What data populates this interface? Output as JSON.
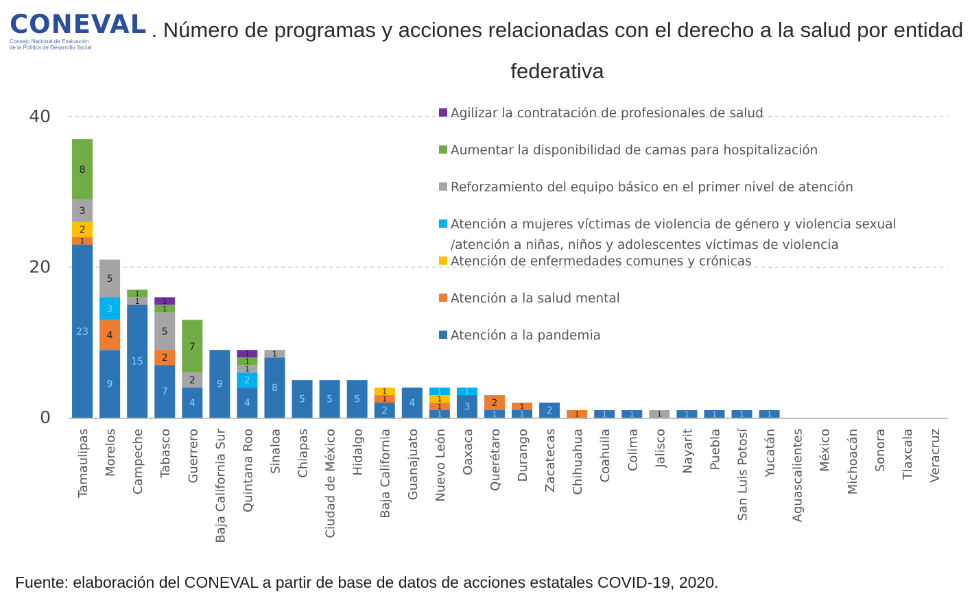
{
  "logo": {
    "brand": "CONEVAL",
    "line1": "Consejo Nacional de Evaluación",
    "line2": "de la Política de Desarrollo Social"
  },
  "title": ". Número de programas y acciones relacionadas con el derecho a la salud por entidad federativa",
  "source": "Fuente: elaboración del CONEVAL a partir de base de datos de acciones estatales COVID-19, 2020.",
  "chart_data": {
    "type": "bar",
    "stacked": true,
    "title": "",
    "xlabel": "",
    "ylabel": "",
    "ylim": [
      0,
      40
    ],
    "yticks": [
      0,
      20,
      40
    ],
    "grid": true,
    "legend_position": "top-right",
    "categories": [
      "Tamaulipas",
      "Morelos",
      "Campeche",
      "Tabasco",
      "Guerrero",
      "Baja California Sur",
      "Quintana Roo",
      "Sinaloa",
      "Chiapas",
      "Ciudad de México",
      "Hidalgo",
      "Baja California",
      "Guanajuato",
      "Nuevo León",
      "Oaxaca",
      "Querétaro",
      "Durango",
      "Zacatecas",
      "Chihuahua",
      "Coahuila",
      "Colima",
      "Jalisco",
      "Nayarit",
      "Puebla",
      "San Luis Potosí",
      "Yucatán",
      "Aguascalientes",
      "México",
      "Michoacán",
      "Sonora",
      "Tlaxcala",
      "Veracruz"
    ],
    "series": [
      {
        "name": "Atención a la pandemia",
        "color": "#2e75b6",
        "values": [
          23,
          9,
          15,
          7,
          4,
          9,
          4,
          8,
          5,
          5,
          5,
          2,
          4,
          1,
          3,
          1,
          1,
          2,
          0,
          1,
          1,
          0,
          1,
          1,
          1,
          1,
          0,
          0,
          0,
          0,
          0,
          0
        ]
      },
      {
        "name": "Atención a la salud mental",
        "color": "#ed7d31",
        "values": [
          1,
          4,
          0,
          2,
          0,
          0,
          0,
          0,
          0,
          0,
          0,
          1,
          0,
          1,
          0,
          2,
          1,
          0,
          1,
          0,
          0,
          0,
          0,
          0,
          0,
          0,
          0,
          0,
          0,
          0,
          0,
          0
        ]
      },
      {
        "name": "Atención de enfermedades comunes y crónicas",
        "color": "#ffc000",
        "values": [
          2,
          0,
          0,
          0,
          0,
          0,
          0,
          0,
          0,
          0,
          0,
          1,
          0,
          1,
          0,
          0,
          0,
          0,
          0,
          0,
          0,
          0,
          0,
          0,
          0,
          0,
          0,
          0,
          0,
          0,
          0,
          0
        ]
      },
      {
        "name": "Atención a mujeres víctimas de violencia de género y violencia sexual /atención a niñas, niños y adolescentes víctimas de violencia",
        "color": "#00b0f0",
        "values": [
          0,
          3,
          0,
          0,
          0,
          0,
          2,
          0,
          0,
          0,
          0,
          0,
          0,
          1,
          1,
          0,
          0,
          0,
          0,
          0,
          0,
          0,
          0,
          0,
          0,
          0,
          0,
          0,
          0,
          0,
          0,
          0
        ]
      },
      {
        "name": "Reforzamiento del equipo básico en el primer nivel de atención",
        "color": "#a5a5a5",
        "values": [
          3,
          5,
          1,
          5,
          2,
          0,
          1,
          1,
          0,
          0,
          0,
          0,
          0,
          0,
          0,
          0,
          0,
          0,
          0,
          0,
          0,
          1,
          0,
          0,
          0,
          0,
          0,
          0,
          0,
          0,
          0,
          0
        ]
      },
      {
        "name": "Aumentar la disponibilidad de camas para hospitalización",
        "color": "#70ad47",
        "values": [
          8,
          0,
          1,
          1,
          7,
          0,
          1,
          0,
          0,
          0,
          0,
          0,
          0,
          0,
          0,
          0,
          0,
          0,
          0,
          0,
          0,
          0,
          0,
          0,
          0,
          0,
          0,
          0,
          0,
          0,
          0,
          0
        ]
      },
      {
        "name": "Agilizar la contratación de profesionales de salud",
        "color": "#7030a0",
        "values": [
          0,
          0,
          0,
          1,
          0,
          0,
          1,
          0,
          0,
          0,
          0,
          0,
          0,
          0,
          0,
          0,
          0,
          0,
          0,
          0,
          0,
          0,
          0,
          0,
          0,
          0,
          0,
          0,
          0,
          0,
          0,
          0
        ]
      }
    ],
    "legend_order": [
      6,
      5,
      4,
      3,
      2,
      1,
      0
    ]
  }
}
